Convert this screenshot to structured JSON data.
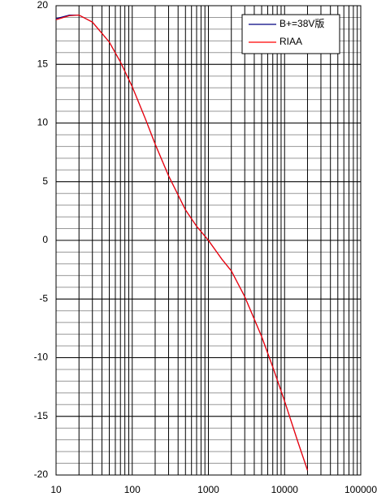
{
  "chart_data": {
    "type": "line",
    "log_x": true,
    "grid": true,
    "legend": "upper right",
    "x": [
      10,
      15,
      20,
      30,
      50,
      70,
      100,
      150,
      200,
      300,
      500,
      700,
      1000,
      1500,
      2000,
      3000,
      5000,
      7000,
      10000,
      15000,
      20000
    ],
    "series": [
      {
        "name": "B+=38V版",
        "color": "#000080",
        "values": [
          18.9,
          19.2,
          19.2,
          18.6,
          16.9,
          15.2,
          13.1,
          10.3,
          8.2,
          5.5,
          2.6,
          1.2,
          0,
          -1.6,
          -2.6,
          -4.8,
          -8.2,
          -10.8,
          -13.7,
          -17.2,
          -19.6
        ]
      },
      {
        "name": "RIAA",
        "color": "#ff0000",
        "values": [
          18.8,
          19.15,
          19.2,
          18.6,
          16.9,
          15.2,
          13.1,
          10.3,
          8.2,
          5.5,
          2.6,
          1.2,
          0,
          -1.6,
          -2.6,
          -4.8,
          -8.2,
          -10.8,
          -13.7,
          -17.2,
          -19.6
        ]
      }
    ],
    "xlim": [
      10,
      100000
    ],
    "xticks": [
      10,
      100,
      1000,
      10000,
      100000
    ],
    "ylim": [
      -20,
      20
    ],
    "yticks": [
      -20,
      -15,
      -10,
      -5,
      0,
      5,
      10,
      15,
      20
    ]
  }
}
